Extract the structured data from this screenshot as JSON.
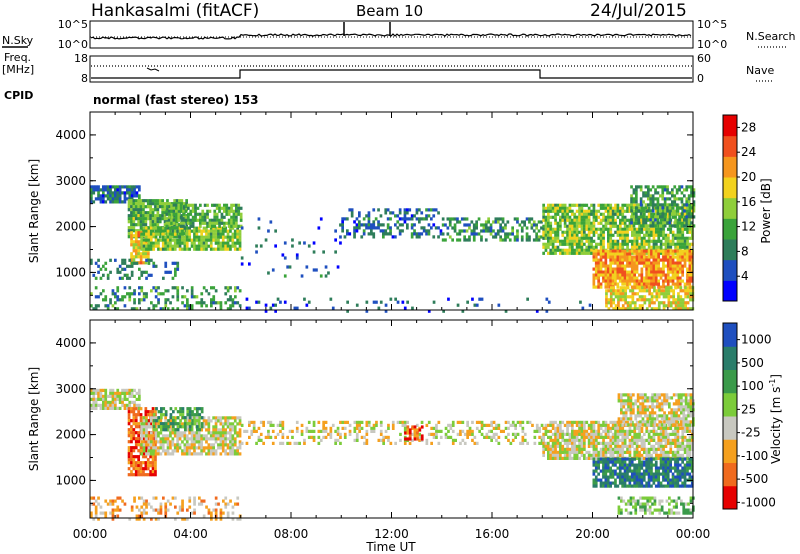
{
  "header": {
    "station": "Hankasalmi (fitACF)",
    "beam": "Beam 10",
    "date": "24/Jul/2015"
  },
  "status_panel": {
    "nsky_label": "N.Sky",
    "nsky_ticks": [
      "10^5",
      "10^0"
    ],
    "nsearch_label": "N.Search",
    "freq_label": "Freq.",
    "freq_unit": "[MHz]",
    "freq_ticks": [
      "18",
      "8"
    ],
    "nave_label": "Nave",
    "nave_ticks": [
      "60",
      "0"
    ],
    "cpid_label": "CPID",
    "cpid_value": "normal (fast stereo) 153"
  },
  "colors": {
    "background": "#ffffff",
    "ground_scatter": "#c8c8c0"
  },
  "chart_data": [
    {
      "type": "heatmap",
      "panel": "power",
      "ylabel": "Slant Range [km]",
      "yticks": [
        "1000",
        "2000",
        "3000",
        "4000"
      ],
      "xticks": [
        "00:00",
        "04:00",
        "08:00",
        "12:00",
        "16:00",
        "20:00",
        "00:00"
      ],
      "xlim": [
        0,
        24
      ],
      "ylim": [
        180,
        4500
      ],
      "colorbar": {
        "label": "Power [dB]",
        "ticks": [
          "4",
          "8",
          "12",
          "16",
          "20",
          "24",
          "28"
        ],
        "range": [
          0,
          30
        ],
        "colors": [
          "#0000ff",
          "#1f4fbf",
          "#2e7d5a",
          "#3aa33a",
          "#8fce3a",
          "#f2d21e",
          "#f5961e",
          "#f0501e",
          "#e60000"
        ]
      },
      "regions": [
        {
          "t0": 0.0,
          "t1": 2.0,
          "r0": 2550,
          "r1": 2900,
          "level": 6,
          "density": 0.8
        },
        {
          "t0": 1.5,
          "t1": 3.8,
          "r0": 1800,
          "r1": 2600,
          "level": 12,
          "density": 0.85
        },
        {
          "t0": 1.6,
          "t1": 2.3,
          "r0": 1200,
          "r1": 1900,
          "level": 20,
          "density": 0.8
        },
        {
          "t0": 2.0,
          "t1": 6.0,
          "r0": 1500,
          "r1": 2000,
          "level": 14,
          "density": 0.85
        },
        {
          "t0": 3.0,
          "t1": 6.0,
          "r0": 2000,
          "r1": 2500,
          "level": 12,
          "density": 0.7
        },
        {
          "t0": 0.0,
          "t1": 6.0,
          "r0": 180,
          "r1": 700,
          "level": 9,
          "density": 0.35
        },
        {
          "t0": 0.0,
          "t1": 3.5,
          "r0": 900,
          "r1": 1300,
          "level": 7,
          "density": 0.3
        },
        {
          "t0": 6.0,
          "t1": 10.0,
          "r0": 900,
          "r1": 2200,
          "level": 5,
          "density": 0.06
        },
        {
          "t0": 10.0,
          "t1": 14.0,
          "r0": 1800,
          "r1": 2400,
          "level": 6,
          "density": 0.35
        },
        {
          "t0": 14.0,
          "t1": 18.0,
          "r0": 1700,
          "r1": 2200,
          "level": 9,
          "density": 0.5
        },
        {
          "t0": 18.0,
          "t1": 24.0,
          "r0": 1400,
          "r1": 2500,
          "level": 14,
          "density": 0.8
        },
        {
          "t0": 20.0,
          "t1": 24.0,
          "r0": 700,
          "r1": 1500,
          "level": 22,
          "density": 0.85
        },
        {
          "t0": 20.5,
          "t1": 24.0,
          "r0": 200,
          "r1": 700,
          "level": 18,
          "density": 0.7
        },
        {
          "t0": 21.5,
          "t1": 24.0,
          "r0": 2000,
          "r1": 2900,
          "level": 10,
          "density": 0.6
        },
        {
          "t0": 6.0,
          "t1": 20.0,
          "r0": 180,
          "r1": 450,
          "level": 4,
          "density": 0.08
        }
      ]
    },
    {
      "type": "heatmap",
      "panel": "velocity",
      "ylabel": "Slant Range [km]",
      "xlabel": "Time UT",
      "yticks": [
        "1000",
        "2000",
        "3000",
        "4000"
      ],
      "xticks": [
        "00:00",
        "04:00",
        "08:00",
        "12:00",
        "16:00",
        "20:00",
        "00:00"
      ],
      "xlim": [
        0,
        24
      ],
      "ylim": [
        180,
        4500
      ],
      "colorbar": {
        "label": "Velocity [m s^-1]",
        "ticks": [
          "1000",
          "500",
          "100",
          "25",
          "-25",
          "-100",
          "-500",
          "-1000"
        ],
        "colors": [
          "#1f4fbf",
          "#2a7d6a",
          "#3a9a4a",
          "#7ccc3a",
          "#c8c8c0",
          "#f5a01e",
          "#f06a1e",
          "#e60000"
        ]
      },
      "regions": [
        {
          "t0": 0.0,
          "t1": 2.0,
          "r0": 2550,
          "r1": 3000,
          "level": 4,
          "density": 0.75
        },
        {
          "t0": 1.5,
          "t1": 2.6,
          "r0": 1100,
          "r1": 2600,
          "level": 6,
          "density": 0.8
        },
        {
          "t0": 2.0,
          "t1": 6.0,
          "r0": 1600,
          "r1": 2400,
          "level": 4,
          "density": 0.75
        },
        {
          "t0": 2.5,
          "t1": 4.5,
          "r0": 2100,
          "r1": 2600,
          "level": 2,
          "density": 0.6
        },
        {
          "t0": 0.0,
          "t1": 6.0,
          "r0": 180,
          "r1": 650,
          "level": 5,
          "density": 0.3
        },
        {
          "t0": 6.0,
          "t1": 18.0,
          "r0": 1800,
          "r1": 2300,
          "level": 4,
          "density": 0.35
        },
        {
          "t0": 12.5,
          "t1": 13.2,
          "r0": 1900,
          "r1": 2200,
          "level": 6,
          "density": 0.7
        },
        {
          "t0": 18.0,
          "t1": 24.0,
          "r0": 1500,
          "r1": 2300,
          "level": 4,
          "density": 0.8
        },
        {
          "t0": 20.0,
          "t1": 24.0,
          "r0": 900,
          "r1": 1500,
          "level": 1,
          "density": 0.8
        },
        {
          "t0": 21.0,
          "t1": 24.0,
          "r0": 300,
          "r1": 650,
          "level": 3,
          "density": 0.55
        },
        {
          "t0": 21.0,
          "t1": 24.0,
          "r0": 2200,
          "r1": 2900,
          "level": 4,
          "density": 0.7
        }
      ]
    }
  ]
}
